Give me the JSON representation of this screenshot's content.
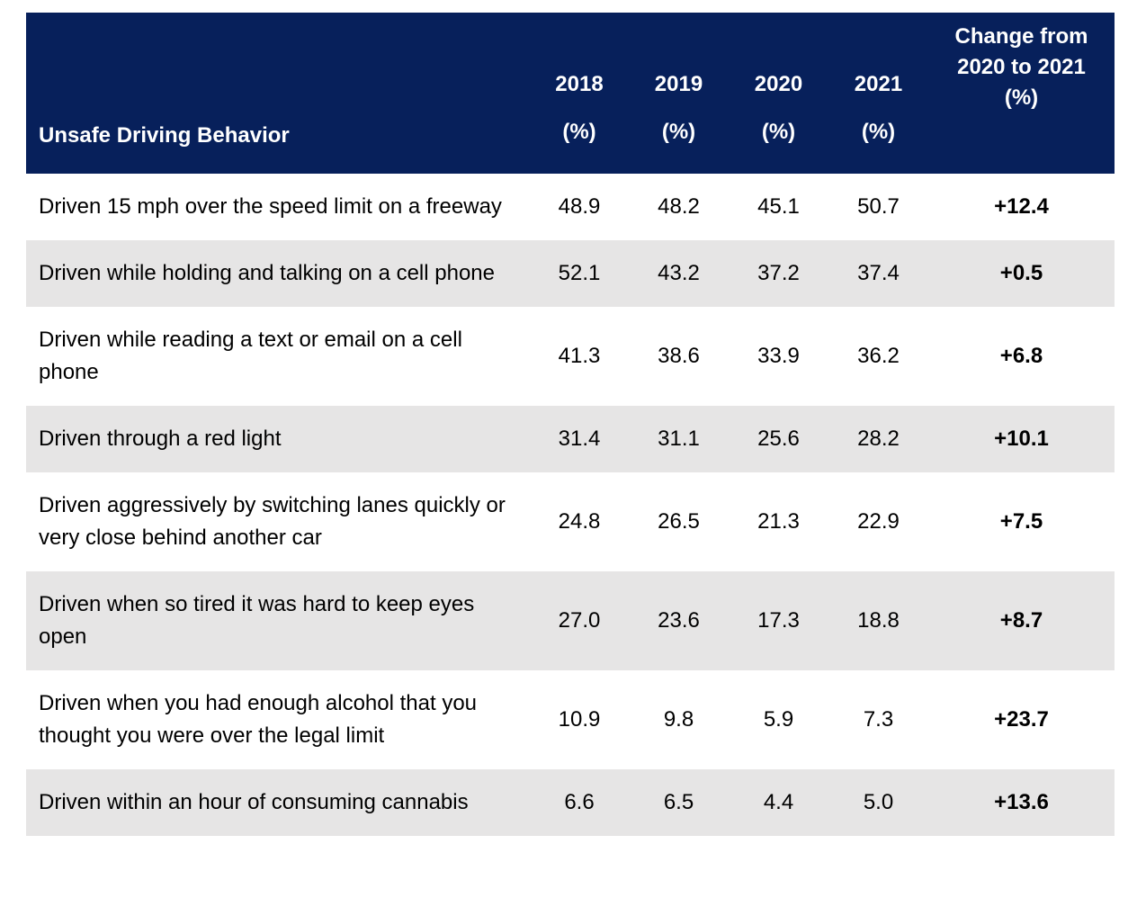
{
  "table": {
    "header": {
      "behavior_label": "Unsafe Driving Behavior",
      "years": [
        {
          "year": "2018",
          "unit": "(%)"
        },
        {
          "year": "2019",
          "unit": "(%)"
        },
        {
          "year": "2020",
          "unit": "(%)"
        },
        {
          "year": "2021",
          "unit": "(%)"
        }
      ],
      "change_lines": [
        "Change from",
        "2020 to 2021",
        "(%)"
      ]
    },
    "rows": [
      {
        "behavior": "Driven 15 mph over the speed limit on a freeway",
        "values": [
          "48.9",
          "48.2",
          "45.1",
          "50.7"
        ],
        "change": "+12.4"
      },
      {
        "behavior": "Driven while holding and talking on a cell phone",
        "values": [
          "52.1",
          "43.2",
          "37.2",
          "37.4"
        ],
        "change": "+0.5"
      },
      {
        "behavior": "Driven while reading a text or email on a cell phone",
        "values": [
          "41.3",
          "38.6",
          "33.9",
          "36.2"
        ],
        "change": "+6.8"
      },
      {
        "behavior": "Driven through a red light",
        "values": [
          "31.4",
          "31.1",
          "25.6",
          "28.2"
        ],
        "change": "+10.1"
      },
      {
        "behavior": "Driven aggressively by switching lanes quickly or very close behind another car",
        "values": [
          "24.8",
          "26.5",
          "21.3",
          "22.9"
        ],
        "change": "+7.5"
      },
      {
        "behavior": "Driven when so tired it was hard to keep eyes open",
        "values": [
          "27.0",
          "23.6",
          "17.3",
          "18.8"
        ],
        "change": "+8.7"
      },
      {
        "behavior": "Driven when you had enough alcohol that you thought you were over the legal limit",
        "values": [
          "10.9",
          "9.8",
          "5.9",
          "7.3"
        ],
        "change": "+23.7"
      },
      {
        "behavior": "Driven within an hour of consuming cannabis",
        "values": [
          "6.6",
          "6.5",
          "4.4",
          "5.0"
        ],
        "change": "+13.6"
      }
    ]
  },
  "colors": {
    "header_bg": "#07205b",
    "header_text": "#ffffff",
    "row_alt_bg": "#e6e5e5",
    "body_text": "#000000"
  },
  "chart_data": {
    "type": "table",
    "title": "",
    "columns": [
      "Unsafe Driving Behavior",
      "2018 (%)",
      "2019 (%)",
      "2020 (%)",
      "2021 (%)",
      "Change from 2020 to 2021 (%)"
    ],
    "rows": [
      [
        "Driven 15 mph over the speed limit on a freeway",
        48.9,
        48.2,
        45.1,
        50.7,
        12.4
      ],
      [
        "Driven while holding and talking on a cell phone",
        52.1,
        43.2,
        37.2,
        37.4,
        0.5
      ],
      [
        "Driven while reading a text or email on a cell phone",
        41.3,
        38.6,
        33.9,
        36.2,
        6.8
      ],
      [
        "Driven through a red light",
        31.4,
        31.1,
        25.6,
        28.2,
        10.1
      ],
      [
        "Driven aggressively by switching lanes quickly or very close behind another car",
        24.8,
        26.5,
        21.3,
        22.9,
        7.5
      ],
      [
        "Driven when so tired it was hard to keep eyes open",
        27.0,
        23.6,
        17.3,
        18.8,
        8.7
      ],
      [
        "Driven when you had enough alcohol that you thought you were over the legal limit",
        10.9,
        9.8,
        5.9,
        7.3,
        23.7
      ],
      [
        "Driven within an hour of consuming cannabis",
        6.6,
        6.5,
        4.4,
        5.0,
        13.6
      ]
    ],
    "layout": {
      "header_rows": 1,
      "alternating_row_shading": true,
      "legend_position": "none",
      "grid": false
    }
  }
}
